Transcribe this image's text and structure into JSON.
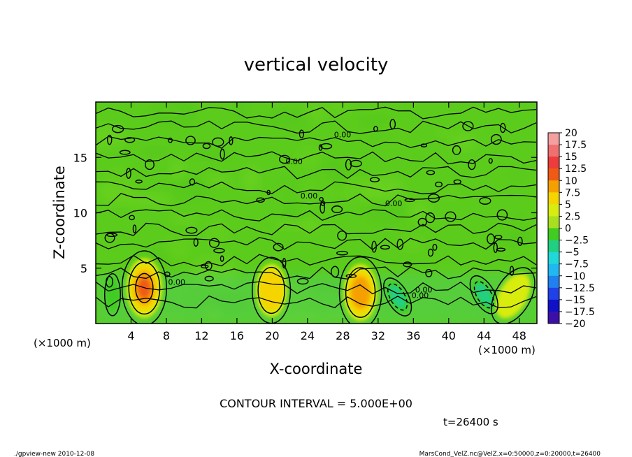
{
  "chart_data": {
    "type": "heatmap",
    "title": "vertical velocity",
    "xlabel": "X-coordinate",
    "ylabel": "Z-coordinate",
    "x_unit": "(×1000 m)",
    "z_unit": "(×1000 m)",
    "xlim": [
      0,
      50
    ],
    "ylim": [
      0,
      20
    ],
    "x_ticks": [
      "4",
      "8",
      "12",
      "16",
      "20",
      "24",
      "28",
      "32",
      "36",
      "40",
      "44",
      "48"
    ],
    "x_tick_values": [
      4,
      8,
      12,
      16,
      20,
      24,
      28,
      32,
      36,
      40,
      44,
      48
    ],
    "y_ticks": [
      "5",
      "10",
      "15"
    ],
    "y_tick_values": [
      5,
      10,
      15
    ],
    "contour_interval": "CONTOUR INTERVAL = 5.000E+00",
    "time_label": "t=26400 s",
    "colorbar": {
      "levels": [
        "20",
        "17.5",
        "15",
        "12.5",
        "10",
        "7.5",
        "5",
        "2.5",
        "0",
        "−2.5",
        "−5",
        "−7.5",
        "−10",
        "−12.5",
        "−15",
        "−17.5",
        "−20"
      ],
      "colors": [
        "#f5a0a0",
        "#f07070",
        "#ee3c3c",
        "#f05a14",
        "#f5a000",
        "#f5d400",
        "#d8ec10",
        "#a8e020",
        "#40cc20",
        "#20d080",
        "#20d8d8",
        "#20b8f0",
        "#2080f0",
        "#2040e8",
        "#1010c8",
        "#3c10a8"
      ]
    },
    "contour_labels": [
      "0.00",
      "0.00",
      "0.00",
      "0.00",
      "0.00",
      "0.00",
      "0.00"
    ],
    "features": [
      {
        "x": 1.9,
        "z": 2.6,
        "value": -3,
        "shape": "updraft_narrow"
      },
      {
        "x": 5.5,
        "z": 3.2,
        "value": 10.5,
        "shape": "updraft"
      },
      {
        "x": 19.9,
        "z": 3.0,
        "value": 6.5,
        "shape": "updraft"
      },
      {
        "x": 30.0,
        "z": 2.8,
        "value": 9.0,
        "shape": "updraft"
      },
      {
        "x": 34.2,
        "z": 2.4,
        "value": -6.0,
        "shape": "downdraft"
      },
      {
        "x": 44.0,
        "z": 2.6,
        "value": -5.5,
        "shape": "downdraft"
      },
      {
        "x": 47.3,
        "z": 2.5,
        "value": 4.5,
        "shape": "updraft"
      }
    ]
  },
  "footer": {
    "left": "./gpview-new   2010-12-08",
    "right": "MarsCond_VelZ.nc@VelZ,x=0:50000,z=0:20000,t=26400"
  }
}
